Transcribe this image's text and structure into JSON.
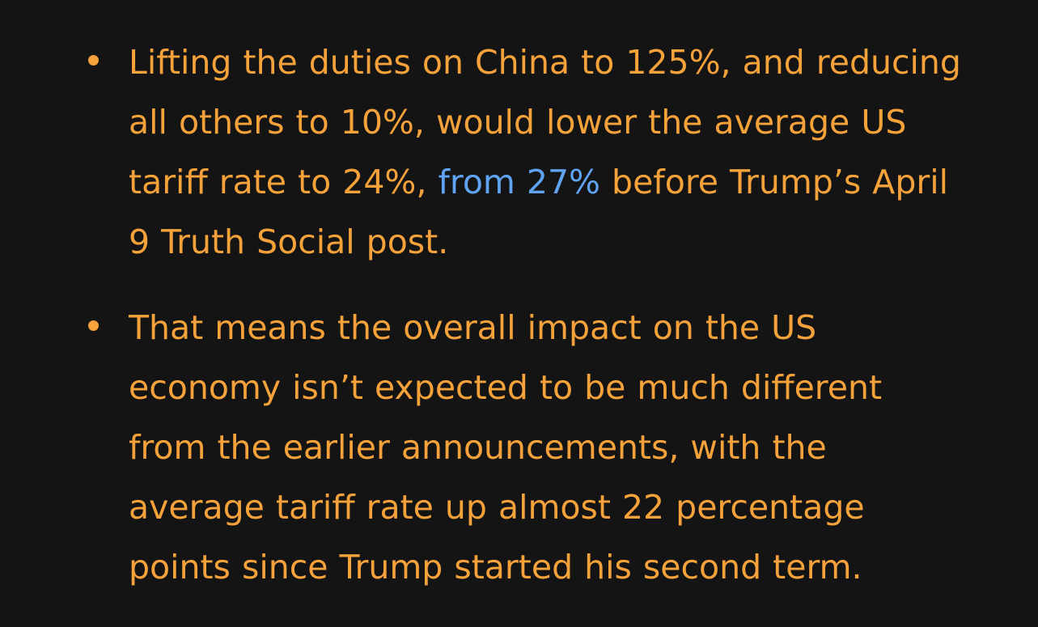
{
  "bullets": [
    {
      "lines": {
        "l1": "Lifting the duties on China to 125%, and reducing",
        "l2": "all others to 10%, would lower the average US",
        "l3_before": "tariff rate to 24%, ",
        "l3_link": "from 27%",
        "l3_after": " before Trump’s April",
        "l4": "9 Truth Social post."
      }
    },
    {
      "lines": {
        "l1": "That means the overall impact on the US",
        "l2": "economy isn’t expected to be much different",
        "l3": "from the earlier announcements, with the",
        "l4": "average tariff rate up almost 22 percentage",
        "l5": "points since Trump started his second term."
      }
    }
  ],
  "colors": {
    "background": "#141414",
    "text": "#f6a23b",
    "link": "#5fa3f2"
  }
}
